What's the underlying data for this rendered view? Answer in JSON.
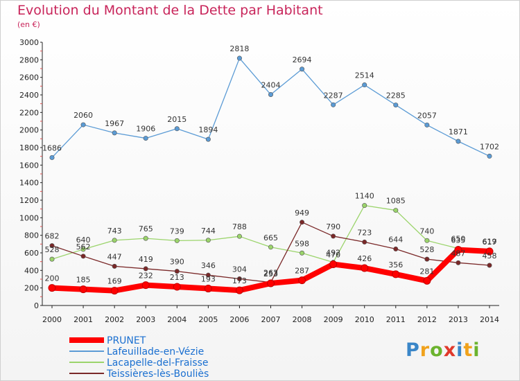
{
  "title": "Evolution du Montant de la Dette par Habitant",
  "subtitle": "(en €)",
  "logo": "Proxiti",
  "chart_data": {
    "type": "line",
    "x": [
      "2000",
      "2001",
      "2002",
      "2003",
      "2004",
      "2005",
      "2006",
      "2007",
      "2008",
      "2009",
      "2010",
      "2011",
      "2012",
      "2013",
      "2014"
    ],
    "ylim": [
      0,
      3000
    ],
    "yticks": [
      "0",
      "200",
      "400",
      "600",
      "800",
      "1000",
      "1200",
      "1400",
      "1600",
      "1800",
      "2000",
      "2200",
      "2400",
      "2600",
      "2800",
      "3000"
    ],
    "grid": false,
    "legend_position": "bottom-left",
    "series": [
      {
        "name": "PRUNET",
        "color": "#ff0000",
        "values": [
          200,
          185,
          169,
          232,
          213,
          193,
          173,
          253,
          287,
          470,
          426,
          356,
          281,
          635,
          617
        ],
        "labels": [
          "200",
          "185",
          "169",
          "232",
          "213",
          "193",
          "173",
          "253",
          "287",
          "470",
          "426",
          "356",
          "281",
          "635",
          "617"
        ]
      },
      {
        "name": "Lafeuillade-en-Vézie",
        "color": "#5b9bd5",
        "values": [
          1686,
          2060,
          1967,
          1906,
          2015,
          1894,
          2818,
          2404,
          2694,
          2287,
          2514,
          2285,
          2057,
          1871,
          1702
        ],
        "labels": [
          "1686",
          "2060",
          "1967",
          "1906",
          "2015",
          "1894",
          "2818",
          "2404",
          "2694",
          "2287",
          "2514",
          "2285",
          "2057",
          "1871",
          "1702"
        ]
      },
      {
        "name": "Lacapelle-del-Fraisse",
        "color": "#9bd46b",
        "values": [
          528,
          640,
          743,
          765,
          739,
          744,
          788,
          665,
          598,
          492,
          1140,
          1085,
          740,
          650,
          619
        ],
        "labels": [
          "528",
          "640",
          "743",
          "765",
          "739",
          "744",
          "788",
          "665",
          "598",
          "492",
          "1140",
          "1085",
          "740",
          "650",
          "619"
        ]
      },
      {
        "name": "Teissières-lès-Bouliès",
        "color": "#7a2828",
        "values": [
          682,
          562,
          447,
          419,
          390,
          346,
          304,
          263,
          949,
          790,
          723,
          644,
          528,
          487,
          458
        ],
        "labels": [
          "682",
          "562",
          "447",
          "419",
          "390",
          "346",
          "304",
          "263",
          "949",
          "790",
          "723",
          "644",
          "528",
          "487",
          "458"
        ]
      }
    ]
  }
}
